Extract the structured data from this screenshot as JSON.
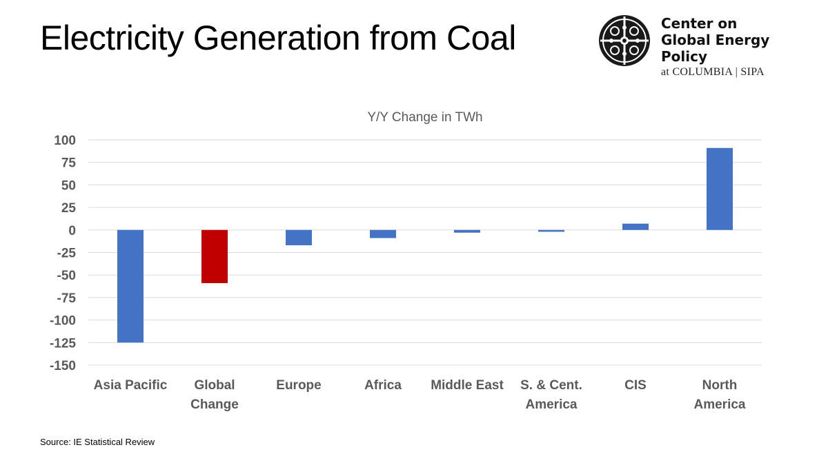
{
  "header": {
    "title": "Electricity Generation from Coal"
  },
  "logo": {
    "line1": "Center on",
    "line2": "Global Energy Policy",
    "line3": "at COLUMBIA | SIPA"
  },
  "chart_data": {
    "type": "bar",
    "title": "Y/Y Change in TWh",
    "xlabel": "",
    "ylabel": "",
    "categories": [
      [
        "Asia Pacific"
      ],
      [
        "Global",
        "Change"
      ],
      [
        "Europe"
      ],
      [
        "Africa"
      ],
      [
        "Middle East"
      ],
      [
        "S. & Cent.",
        "America"
      ],
      [
        "CIS"
      ],
      [
        "North",
        "America"
      ]
    ],
    "values": [
      -125,
      -59,
      -17,
      -9,
      -3,
      -2,
      7,
      91
    ],
    "colors": [
      "#4472C4",
      "#C00000",
      "#4472C4",
      "#4472C4",
      "#4472C4",
      "#4472C4",
      "#4472C4",
      "#4472C4"
    ],
    "ylim": [
      -150,
      100
    ],
    "yticks": [
      100,
      75,
      50,
      25,
      0,
      -25,
      -50,
      -75,
      -100,
      -125,
      -150
    ],
    "grid": true,
    "legend": "none"
  },
  "footer": {
    "source": "Source: IE Statistical Review"
  }
}
